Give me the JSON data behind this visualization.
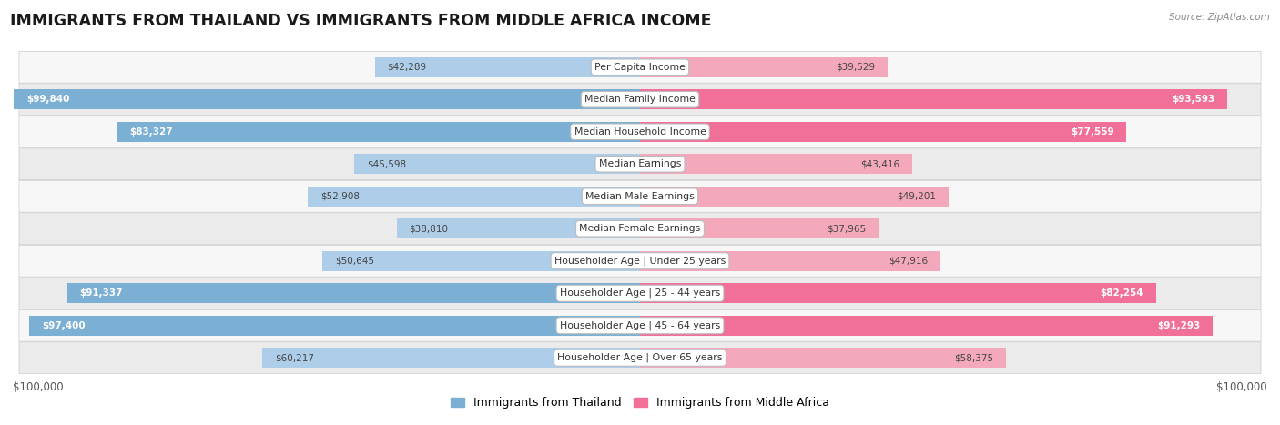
{
  "title": "IMMIGRANTS FROM THAILAND VS IMMIGRANTS FROM MIDDLE AFRICA INCOME",
  "source": "Source: ZipAtlas.com",
  "categories": [
    "Per Capita Income",
    "Median Family Income",
    "Median Household Income",
    "Median Earnings",
    "Median Male Earnings",
    "Median Female Earnings",
    "Householder Age | Under 25 years",
    "Householder Age | 25 - 44 years",
    "Householder Age | 45 - 64 years",
    "Householder Age | Over 65 years"
  ],
  "thailand_values": [
    42289,
    99840,
    83327,
    45598,
    52908,
    38810,
    50645,
    91337,
    97400,
    60217
  ],
  "middle_africa_values": [
    39529,
    93593,
    77559,
    43416,
    49201,
    37965,
    47916,
    82254,
    91293,
    58375
  ],
  "thailand_color": "#7bafd4",
  "middle_africa_color": "#f07098",
  "thailand_color_light": "#aecde8",
  "middle_africa_color_light": "#f4a8bc",
  "thailand_label": "Immigrants from Thailand",
  "middle_africa_label": "Immigrants from Middle Africa",
  "max_value": 100000,
  "x_label_left": "$100,000",
  "x_label_right": "$100,000",
  "background_color": "#ffffff",
  "row_bg_odd": "#ebebeb",
  "row_bg_even": "#f7f7f7",
  "title_fontsize": 12.5,
  "bar_height": 0.62,
  "inside_label_threshold": 70000
}
